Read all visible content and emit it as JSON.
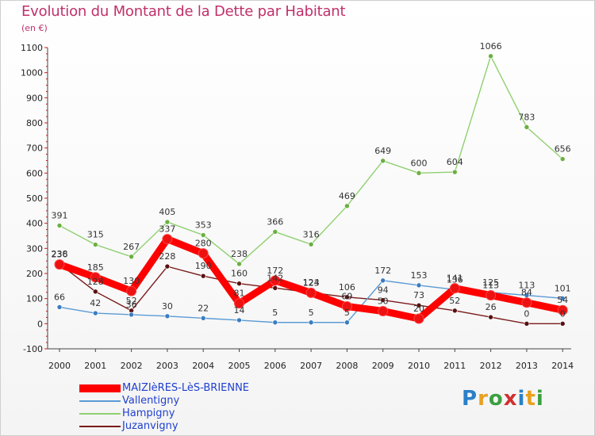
{
  "title": "Evolution du Montant de la Dette par Habitant",
  "subtitle": "(en €)",
  "logo": {
    "text": "Proxiti",
    "letters": [
      "P",
      "r",
      "o",
      "x",
      "i",
      "t",
      "i"
    ]
  },
  "chart_data": {
    "type": "line",
    "ylim": [
      -100,
      1100
    ],
    "yticks": [
      -100,
      0,
      100,
      200,
      300,
      400,
      500,
      600,
      700,
      800,
      900,
      1000,
      1100
    ],
    "categories": [
      "2000",
      "2001",
      "2002",
      "2003",
      "2004",
      "2005",
      "2006",
      "2007",
      "2008",
      "2009",
      "2010",
      "2011",
      "2012",
      "2013",
      "2014"
    ],
    "grid": false,
    "legend_position": "bottom-left",
    "series": [
      {
        "name": "Juzanvigny",
        "color": "#7a1a1a",
        "marker": "#5a1010",
        "values": [
          238,
          128,
          52,
          228,
          190,
          160,
          142,
          124,
          106,
          94,
          73,
          52,
          26,
          0,
          0
        ]
      },
      {
        "name": "Vallentigny",
        "color": "#5b9bd5",
        "marker": "#3a7cc0",
        "values": [
          66,
          42,
          36,
          30,
          22,
          14,
          5,
          5,
          5,
          172,
          153,
          136,
          125,
          113,
          101
        ]
      },
      {
        "name": "Hampigny",
        "color": "#90d070",
        "marker": "#6ab040",
        "values": [
          391,
          315,
          267,
          405,
          353,
          238,
          366,
          316,
          469,
          649,
          600,
          604,
          1066,
          783,
          656
        ]
      },
      {
        "name": "MAIZIèRES-LèS-BRIENNE",
        "color": "#ff0000",
        "marker": "#ee1111",
        "values": [
          236,
          185,
          130,
          337,
          280,
          81,
          172,
          123,
          69,
          50,
          20,
          141,
          113,
          84,
          54
        ]
      }
    ],
    "data_labels": [
      {
        "series": 0,
        "labels": [
          "238",
          "128",
          "52",
          "228",
          "190",
          "160",
          "142",
          "124",
          "106",
          "94",
          "73",
          "52",
          "26",
          "0",
          "0"
        ]
      },
      {
        "series": 1,
        "labels": [
          "66",
          "42",
          "36",
          "30",
          "22",
          "14",
          "5",
          "5",
          "5",
          "172",
          "153",
          "136",
          "125",
          "113",
          "101"
        ]
      },
      {
        "series": 2,
        "labels": [
          "391",
          "315",
          "267",
          "405",
          "353",
          "238",
          "366",
          "316",
          "469",
          "649",
          "600",
          "604",
          "1066",
          "783",
          "656"
        ]
      },
      {
        "series": 3,
        "labels": [
          "236",
          "185",
          "130",
          "337",
          "280",
          "81",
          "172",
          "123",
          "69",
          "50",
          "20",
          "141",
          "113",
          "84",
          "54"
        ]
      }
    ]
  },
  "legend": [
    {
      "label": "MAIZIèRES-LèS-BRIENNE",
      "color": "#ff0000",
      "thick": true
    },
    {
      "label": "Vallentigny",
      "color": "#5b9bd5",
      "thick": false
    },
    {
      "label": "Hampigny",
      "color": "#90d070",
      "thick": false
    },
    {
      "label": "Juzanvigny",
      "color": "#7a1a1a",
      "thick": false
    }
  ]
}
